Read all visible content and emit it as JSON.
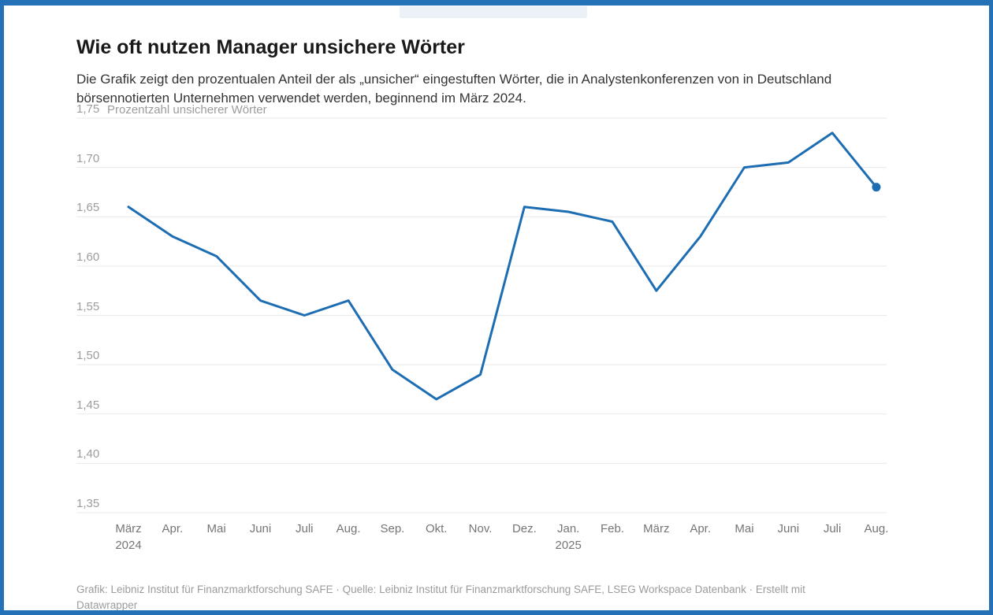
{
  "frame": {
    "border_color": "#2471b7"
  },
  "header": {
    "title": "Wie oft nutzen Manager unsichere Wörter",
    "subtitle": "Die Grafik zeigt den prozentualen Anteil der als „unsicher“ eingestuften Wörter, die in Analystenkonferenzen von in Deutschland börsennotierten Unternehmen verwendet werden, beginnend im März 2024."
  },
  "footer": {
    "text": "Grafik: Leibniz Institut für Finanzmarktforschung SAFE · Quelle: Leibniz Institut für Finanzmarktforschung SAFE, LSEG Workspace Datenbank · Erstellt mit Datawrapper"
  },
  "chart_data": {
    "type": "line",
    "title": "Wie oft nutzen Manager unsichere Wörter",
    "ylabel": "Prozentzahl unsicherer Wörter",
    "xlabel": "",
    "x": [
      "März 2024",
      "Apr. 2024",
      "Mai 2024",
      "Juni 2024",
      "Juli 2024",
      "Aug. 2024",
      "Sep. 2024",
      "Okt. 2024",
      "Nov. 2024",
      "Dez. 2024",
      "Jan. 2025",
      "Feb. 2025",
      "März 2025",
      "Apr. 2025",
      "Mai 2025",
      "Juni 2025",
      "Juli 2025",
      "Aug. 2025"
    ],
    "x_tick_labels": [
      {
        "month": "März",
        "year": "2024"
      },
      {
        "month": "Apr.",
        "year": ""
      },
      {
        "month": "Mai",
        "year": ""
      },
      {
        "month": "Juni",
        "year": ""
      },
      {
        "month": "Juli",
        "year": ""
      },
      {
        "month": "Aug.",
        "year": ""
      },
      {
        "month": "Sep.",
        "year": ""
      },
      {
        "month": "Okt.",
        "year": ""
      },
      {
        "month": "Nov.",
        "year": ""
      },
      {
        "month": "Dez.",
        "year": ""
      },
      {
        "month": "Jan.",
        "year": "2025"
      },
      {
        "month": "Feb.",
        "year": ""
      },
      {
        "month": "März",
        "year": ""
      },
      {
        "month": "Apr.",
        "year": ""
      },
      {
        "month": "Mai",
        "year": ""
      },
      {
        "month": "Juni",
        "year": ""
      },
      {
        "month": "Juli",
        "year": ""
      },
      {
        "month": "Aug.",
        "year": ""
      }
    ],
    "values": [
      1.66,
      1.63,
      1.61,
      1.565,
      1.55,
      1.565,
      1.495,
      1.465,
      1.49,
      1.66,
      1.655,
      1.645,
      1.575,
      1.63,
      1.7,
      1.705,
      1.735,
      1.68
    ],
    "ylim": [
      1.35,
      1.75
    ],
    "yticks": [
      1.75,
      1.7,
      1.65,
      1.6,
      1.55,
      1.5,
      1.45,
      1.4,
      1.35
    ],
    "ytick_labels": [
      "1,75",
      "1,70",
      "1,65",
      "1,60",
      "1,55",
      "1,50",
      "1,45",
      "1,40",
      "1,35"
    ],
    "grid": true,
    "legend": false,
    "grid_color": "#e9e9e9",
    "line_color": "#1d6db3",
    "last_point_marker": true
  }
}
